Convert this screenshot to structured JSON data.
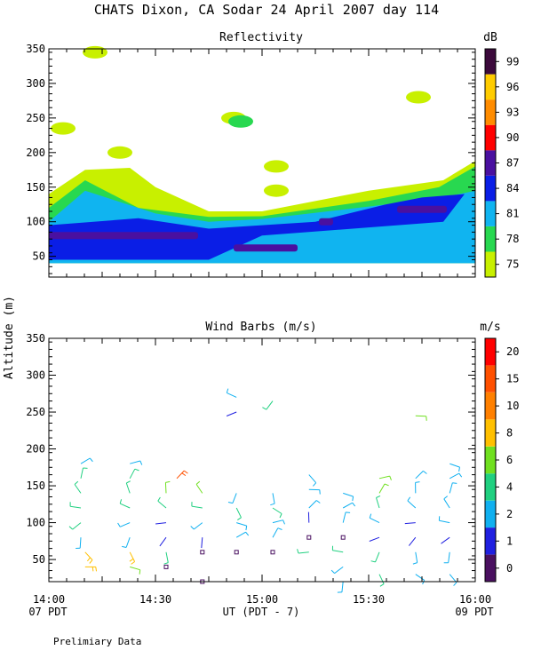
{
  "figure": {
    "title": "CHATS Dixon, CA  Sodar  24 April 2007  day 114",
    "ylabel": "Altitude (m)",
    "xlabel": "UT  (PDT - 7)",
    "left_local_label": "07 PDT",
    "right_local_label": "09 PDT",
    "footer": "Prelimiary Data"
  },
  "colors": {
    "scale": [
      "#c8f000",
      "#28d850",
      "#10b4f0",
      "#0a1ee6",
      "#4a10a0",
      "#ff0000",
      "#ff8c00",
      "#ffcc00",
      "#3c0a3c"
    ],
    "wind_scale": [
      "#4a1060",
      "#2020e0",
      "#10b0f0",
      "#20d080",
      "#70e020",
      "#ffc000",
      "#ff8000",
      "#ff5000",
      "#ff0000"
    ]
  },
  "chart_data": [
    {
      "type": "heatmap",
      "title": "Reflectivity",
      "ylim": [
        20,
        350
      ],
      "xlim": [
        "14:00",
        "16:00"
      ],
      "x_ticks": [
        "14:00",
        "14:30",
        "15:00",
        "15:30",
        "16:00"
      ],
      "y_ticks": [
        50,
        100,
        150,
        200,
        250,
        300,
        350
      ],
      "colorbar": {
        "unit": "dB",
        "labels": [
          "75",
          "78",
          "81",
          "84",
          "87",
          "90",
          "93",
          "96",
          "99"
        ]
      },
      "contour_regions": [
        {
          "level": "75",
          "description": "outer envelope",
          "points": [
            [
              14.0,
              140
            ],
            [
              14.17,
              175
            ],
            [
              14.38,
              178
            ],
            [
              14.5,
              150
            ],
            [
              14.75,
              115
            ],
            [
              15.0,
              115
            ],
            [
              15.5,
              145
            ],
            [
              15.85,
              160
            ],
            [
              16.0,
              188
            ],
            [
              16.0,
              40
            ],
            [
              14.0,
              40
            ]
          ]
        },
        {
          "level": "78",
          "points": [
            [
              14.0,
              120
            ],
            [
              14.17,
              160
            ],
            [
              14.42,
              120
            ],
            [
              14.75,
              107
            ],
            [
              15.0,
              108
            ],
            [
              15.5,
              130
            ],
            [
              15.83,
              150
            ],
            [
              16.0,
              180
            ],
            [
              16.0,
              40
            ],
            [
              14.0,
              40
            ]
          ]
        },
        {
          "level": "81",
          "points": [
            [
              14.0,
              100
            ],
            [
              14.17,
              145
            ],
            [
              14.5,
              112
            ],
            [
              14.75,
              100
            ],
            [
              15.0,
              104
            ],
            [
              15.5,
              122
            ],
            [
              15.85,
              135
            ],
            [
              16.0,
              145
            ],
            [
              16.0,
              40
            ],
            [
              14.0,
              40
            ]
          ]
        },
        {
          "level": "84",
          "points": [
            [
              14.0,
              95
            ],
            [
              14.42,
              105
            ],
            [
              14.75,
              90
            ],
            [
              15.25,
              100
            ],
            [
              15.58,
              125
            ],
            [
              15.75,
              135
            ],
            [
              15.95,
              140
            ],
            [
              15.85,
              100
            ],
            [
              15.0,
              80
            ],
            [
              14.75,
              45
            ],
            [
              14.0,
              45
            ]
          ]
        }
      ],
      "isolated_patches": [
        {
          "level": "75",
          "x_center": "14:13",
          "altitude": 345
        },
        {
          "level": "75",
          "x_center": "14:04",
          "altitude": 235
        },
        {
          "level": "75",
          "x_center": "14:52",
          "altitude": 250
        },
        {
          "level": "78",
          "x_center": "14:54",
          "altitude": 245
        },
        {
          "level": "75",
          "x_center": "14:20",
          "altitude": 200
        },
        {
          "level": "75",
          "x_center": "15:04",
          "altitude": 180
        },
        {
          "level": "75",
          "x_center": "15:04",
          "altitude": 145
        },
        {
          "level": "75",
          "x_center": "15:44",
          "altitude": 280
        }
      ],
      "cores": [
        {
          "level": "87",
          "x_range": [
            "14:00",
            "14:42"
          ],
          "altitude": 80
        },
        {
          "level": "87",
          "x_range": [
            "14:52",
            "15:10"
          ],
          "altitude": 62
        },
        {
          "level": "87",
          "x_range": [
            "15:38",
            "15:52"
          ],
          "altitude": 118
        },
        {
          "level": "87",
          "x_center": "15:18",
          "altitude": 100
        }
      ]
    },
    {
      "type": "scatter",
      "title": "Wind Barbs (m/s)",
      "ylim": [
        20,
        350
      ],
      "xlim": [
        "14:00",
        "16:00"
      ],
      "x_ticks": [
        "14:00",
        "14:30",
        "15:00",
        "15:30",
        "16:00"
      ],
      "y_ticks": [
        50,
        100,
        150,
        200,
        250,
        300,
        350
      ],
      "colorbar": {
        "unit": "m/s",
        "labels": [
          "0",
          "1",
          "2",
          "4",
          "6",
          "8",
          "10",
          "15",
          "20"
        ]
      },
      "barbs": [
        {
          "t": 14.17,
          "z": 40,
          "speed": 8
        },
        {
          "t": 14.17,
          "z": 60,
          "speed": 8
        },
        {
          "t": 14.15,
          "z": 80,
          "speed": 2
        },
        {
          "t": 14.15,
          "z": 100,
          "speed": 4
        },
        {
          "t": 14.15,
          "z": 120,
          "speed": 4
        },
        {
          "t": 14.15,
          "z": 140,
          "speed": 4
        },
        {
          "t": 14.15,
          "z": 160,
          "speed": 4
        },
        {
          "t": 14.15,
          "z": 180,
          "speed": 2
        },
        {
          "t": 14.38,
          "z": 40,
          "speed": 6
        },
        {
          "t": 14.38,
          "z": 60,
          "speed": 8
        },
        {
          "t": 14.38,
          "z": 80,
          "speed": 2
        },
        {
          "t": 14.38,
          "z": 100,
          "speed": 2
        },
        {
          "t": 14.38,
          "z": 120,
          "speed": 4
        },
        {
          "t": 14.38,
          "z": 140,
          "speed": 4
        },
        {
          "t": 14.38,
          "z": 160,
          "speed": 4
        },
        {
          "t": 14.38,
          "z": 180,
          "speed": 2
        },
        {
          "t": 14.55,
          "z": 40,
          "speed": 0
        },
        {
          "t": 14.55,
          "z": 60,
          "speed": 4
        },
        {
          "t": 14.55,
          "z": 80,
          "speed": 1
        },
        {
          "t": 14.55,
          "z": 100,
          "speed": 1
        },
        {
          "t": 14.55,
          "z": 120,
          "speed": 4
        },
        {
          "t": 14.55,
          "z": 140,
          "speed": 6
        },
        {
          "t": 14.6,
          "z": 160,
          "speed": 15
        },
        {
          "t": 14.72,
          "z": 20,
          "speed": 0
        },
        {
          "t": 14.72,
          "z": 60,
          "speed": 0
        },
        {
          "t": 14.72,
          "z": 80,
          "speed": 1
        },
        {
          "t": 14.72,
          "z": 100,
          "speed": 2
        },
        {
          "t": 14.72,
          "z": 120,
          "speed": 4
        },
        {
          "t": 14.72,
          "z": 140,
          "speed": 6
        },
        {
          "t": 14.88,
          "z": 60,
          "speed": 0
        },
        {
          "t": 14.88,
          "z": 80,
          "speed": 2
        },
        {
          "t": 14.88,
          "z": 100,
          "speed": 2
        },
        {
          "t": 14.88,
          "z": 120,
          "speed": 4
        },
        {
          "t": 14.88,
          "z": 140,
          "speed": 2
        },
        {
          "t": 14.88,
          "z": 250,
          "speed": 1
        },
        {
          "t": 14.88,
          "z": 270,
          "speed": 2
        },
        {
          "t": 15.05,
          "z": 60,
          "speed": 0
        },
        {
          "t": 15.05,
          "z": 80,
          "speed": 2
        },
        {
          "t": 15.05,
          "z": 100,
          "speed": 2
        },
        {
          "t": 15.05,
          "z": 120,
          "speed": 4
        },
        {
          "t": 15.05,
          "z": 140,
          "speed": 2
        },
        {
          "t": 15.05,
          "z": 265,
          "speed": 4
        },
        {
          "t": 15.22,
          "z": 60,
          "speed": 4
        },
        {
          "t": 15.22,
          "z": 80,
          "speed": 0
        },
        {
          "t": 15.22,
          "z": 100,
          "speed": 1
        },
        {
          "t": 15.22,
          "z": 120,
          "speed": 2
        },
        {
          "t": 15.22,
          "z": 145,
          "speed": 2
        },
        {
          "t": 15.22,
          "z": 165,
          "speed": 2
        },
        {
          "t": 15.38,
          "z": 20,
          "speed": 2
        },
        {
          "t": 15.38,
          "z": 40,
          "speed": 2
        },
        {
          "t": 15.38,
          "z": 60,
          "speed": 4
        },
        {
          "t": 15.38,
          "z": 80,
          "speed": 0
        },
        {
          "t": 15.38,
          "z": 100,
          "speed": 2
        },
        {
          "t": 15.38,
          "z": 120,
          "speed": 2
        },
        {
          "t": 15.38,
          "z": 140,
          "speed": 2
        },
        {
          "t": 15.55,
          "z": 30,
          "speed": 4
        },
        {
          "t": 15.55,
          "z": 60,
          "speed": 4
        },
        {
          "t": 15.55,
          "z": 80,
          "speed": 1
        },
        {
          "t": 15.55,
          "z": 100,
          "speed": 2
        },
        {
          "t": 15.55,
          "z": 120,
          "speed": 4
        },
        {
          "t": 15.55,
          "z": 140,
          "speed": 6
        },
        {
          "t": 15.55,
          "z": 160,
          "speed": 6
        },
        {
          "t": 15.72,
          "z": 30,
          "speed": 2
        },
        {
          "t": 15.72,
          "z": 60,
          "speed": 2
        },
        {
          "t": 15.72,
          "z": 80,
          "speed": 1
        },
        {
          "t": 15.72,
          "z": 100,
          "speed": 1
        },
        {
          "t": 15.72,
          "z": 120,
          "speed": 2
        },
        {
          "t": 15.72,
          "z": 140,
          "speed": 2
        },
        {
          "t": 15.72,
          "z": 160,
          "speed": 2
        },
        {
          "t": 15.72,
          "z": 245,
          "speed": 6
        },
        {
          "t": 15.88,
          "z": 30,
          "speed": 2
        },
        {
          "t": 15.88,
          "z": 60,
          "speed": 2
        },
        {
          "t": 15.88,
          "z": 80,
          "speed": 1
        },
        {
          "t": 15.88,
          "z": 100,
          "speed": 2
        },
        {
          "t": 15.88,
          "z": 120,
          "speed": 2
        },
        {
          "t": 15.88,
          "z": 140,
          "speed": 2
        },
        {
          "t": 15.88,
          "z": 160,
          "speed": 2
        },
        {
          "t": 15.88,
          "z": 180,
          "speed": 2
        }
      ]
    }
  ]
}
